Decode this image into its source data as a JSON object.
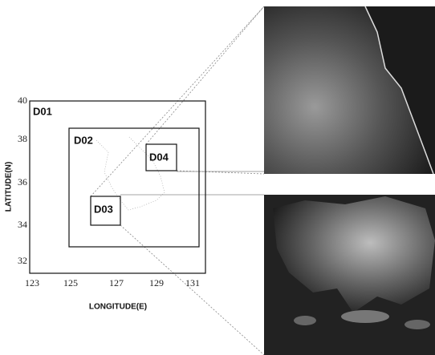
{
  "map": {
    "x_axis_label": "LONGITUDE(E)",
    "y_axis_label": "LATITUDE(N)",
    "x_tick_labels": [
      "123",
      "125",
      "127",
      "129",
      "131"
    ],
    "y_tick_labels": [
      "40",
      "38",
      "36",
      "34",
      "32"
    ],
    "domains": [
      "D01",
      "D02",
      "D03",
      "D04"
    ]
  }
}
